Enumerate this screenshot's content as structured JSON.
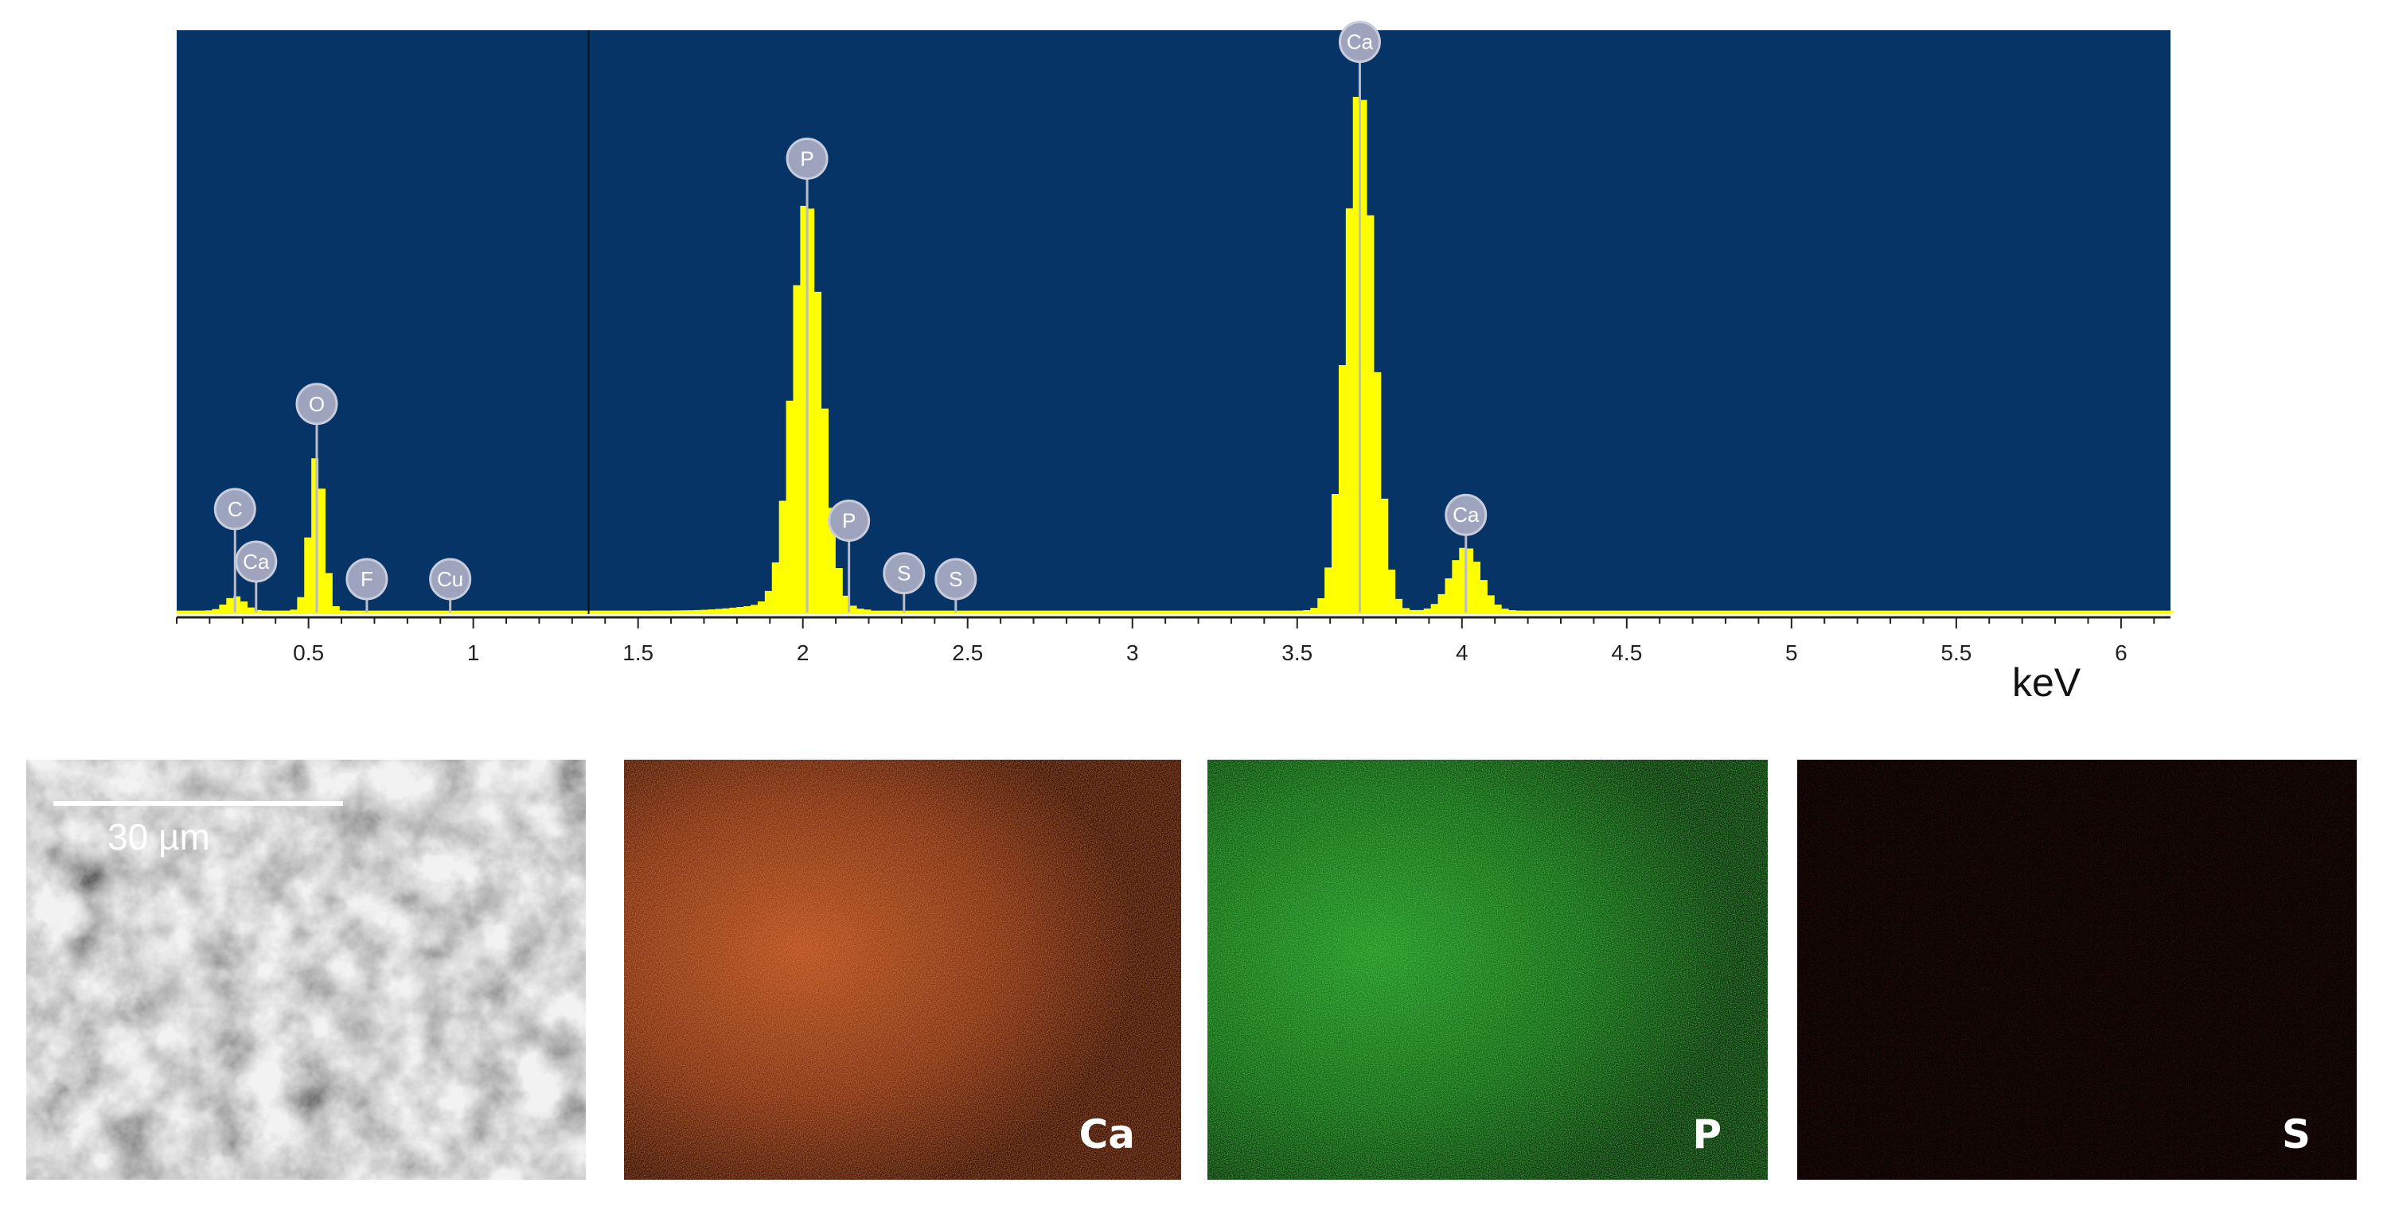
{
  "chart_data": {
    "type": "area",
    "title": "",
    "xlabel": "keV",
    "ylabel": "",
    "xlim": [
      0.1,
      6.15
    ],
    "ylim": [
      0,
      1.0
    ],
    "x_ticks": [
      "0.5",
      "1",
      "1.5",
      "2",
      "2.5",
      "3",
      "3.5",
      "4",
      "4.5",
      "5",
      "5.5",
      "6"
    ],
    "background_color": "#073466",
    "fill_color": "#ffff00",
    "grid": false,
    "cursor_x": 1.35,
    "peaks": [
      {
        "element": "C",
        "energy": 0.277,
        "height": 0.025,
        "width": 0.028,
        "label_y": 0.18
      },
      {
        "element": "Ca",
        "energy": 0.341,
        "height": 0.0,
        "width": 0.0,
        "label_y": 0.09
      },
      {
        "element": "O",
        "energy": 0.525,
        "height": 0.27,
        "width": 0.022,
        "label_y": 0.36
      },
      {
        "element": "F",
        "energy": 0.677,
        "height": 0.0,
        "width": 0.0,
        "label_y": 0.06
      },
      {
        "element": "Cu",
        "energy": 0.93,
        "height": 0.0,
        "width": 0.0,
        "label_y": 0.06
      },
      {
        "element": "P",
        "energy": 2.013,
        "height": 0.7,
        "width": 0.045,
        "label_y": 0.78
      },
      {
        "element": "P",
        "energy": 2.14,
        "height": 0.0,
        "width": 0.0,
        "label_y": 0.16
      },
      {
        "element": "S",
        "energy": 2.307,
        "height": 0.0,
        "width": 0.0,
        "label_y": 0.07
      },
      {
        "element": "S",
        "energy": 2.464,
        "height": 0.0,
        "width": 0.0,
        "label_y": 0.06
      },
      {
        "element": "Ca",
        "energy": 3.69,
        "height": 0.905,
        "width": 0.043,
        "label_y": 0.98
      },
      {
        "element": "Ca",
        "energy": 4.012,
        "height": 0.11,
        "width": 0.045,
        "label_y": 0.17
      }
    ]
  },
  "maps": [
    {
      "name": "sem",
      "label": "",
      "scale_label": "30 µm"
    },
    {
      "name": "ca",
      "label": "Ca"
    },
    {
      "name": "p",
      "label": "P"
    },
    {
      "name": "s",
      "label": "S"
    }
  ]
}
